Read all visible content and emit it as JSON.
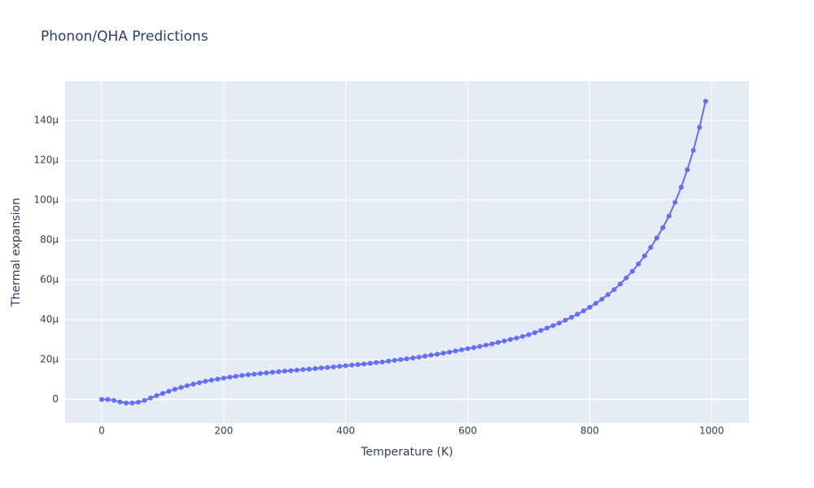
{
  "chart_data": {
    "type": "line",
    "title": "Phonon/QHA Predictions",
    "x_label": "Temperature (K)",
    "y_label": "Thermal expansion",
    "x": [
      0,
      10,
      20,
      30,
      40,
      50,
      60,
      70,
      80,
      90,
      100,
      110,
      120,
      130,
      140,
      150,
      160,
      170,
      180,
      190,
      200,
      210,
      220,
      230,
      240,
      250,
      260,
      270,
      280,
      290,
      300,
      310,
      320,
      330,
      340,
      350,
      360,
      370,
      380,
      390,
      400,
      410,
      420,
      430,
      440,
      450,
      460,
      470,
      480,
      490,
      500,
      510,
      520,
      530,
      540,
      550,
      560,
      570,
      580,
      590,
      600,
      610,
      620,
      630,
      640,
      650,
      660,
      670,
      680,
      690,
      700,
      710,
      720,
      730,
      740,
      750,
      760,
      770,
      780,
      790,
      800,
      810,
      820,
      830,
      840,
      850,
      860,
      870,
      880,
      890,
      900,
      910,
      920,
      930,
      940,
      950,
      960,
      970,
      980,
      990
    ],
    "values": [
      0.0,
      0.0,
      -5e-07,
      -1.3e-06,
      -1.8e-06,
      -1.8e-06,
      -1.4e-06,
      -5e-07,
      7e-07,
      1.9e-06,
      3e-06,
      4.1e-06,
      5.1e-06,
      6e-06,
      6.9e-06,
      7.7e-06,
      8.4e-06,
      9.1e-06,
      9.7e-06,
      1.02e-05,
      1.07e-05,
      1.12e-05,
      1.16e-05,
      1.2e-05,
      1.24e-05,
      1.27e-05,
      1.3e-05,
      1.33e-05,
      1.36e-05,
      1.39e-05,
      1.42e-05,
      1.44e-05,
      1.47e-05,
      1.5e-05,
      1.52e-05,
      1.55e-05,
      1.58e-05,
      1.6e-05,
      1.63e-05,
      1.66e-05,
      1.69e-05,
      1.72e-05,
      1.75e-05,
      1.78e-05,
      1.81e-05,
      1.85e-05,
      1.88e-05,
      1.92e-05,
      1.96e-05,
      2e-05,
      2.04e-05,
      2.08e-05,
      2.12e-05,
      2.17e-05,
      2.22e-05,
      2.27e-05,
      2.32e-05,
      2.37e-05,
      2.43e-05,
      2.49e-05,
      2.55e-05,
      2.6e-05,
      2.66e-05,
      2.72e-05,
      2.79e-05,
      2.86e-05,
      2.93e-05,
      3.01e-05,
      3.08e-05,
      3.16e-05,
      3.25e-05,
      3.35e-05,
      3.46e-05,
      3.58e-05,
      3.7e-05,
      3.83e-05,
      3.97e-05,
      4.12e-05,
      4.28e-05,
      4.44e-05,
      4.62e-05,
      4.82e-05,
      5.03e-05,
      5.26e-05,
      5.51e-05,
      5.79e-05,
      6.1e-05,
      6.43e-05,
      6.8e-05,
      7.2e-05,
      7.63e-05,
      8.1e-05,
      8.62e-05,
      9.2e-05,
      9.89e-05,
      0.0001065,
      0.0001152,
      0.000125,
      0.0001365,
      0.0001496
    ],
    "color": "#636efa",
    "xlim": [
      -60,
      1061
    ],
    "xticks": [
      0,
      200,
      400,
      600,
      800,
      1000
    ],
    "ylim": [
      -1.18e-05,
      0.0001596
    ],
    "yticks": [
      0,
      {
        "value": 2e-05,
        "label": "20µ"
      },
      {
        "value": 4e-05,
        "label": "40µ"
      },
      {
        "value": 6e-05,
        "label": "60µ"
      },
      {
        "value": 8e-05,
        "label": "80µ"
      },
      {
        "value": 0.0001,
        "label": "100µ"
      },
      {
        "value": 0.00012,
        "label": "120µ"
      },
      {
        "value": 0.00014,
        "label": "140µ"
      }
    ],
    "grid": true
  }
}
